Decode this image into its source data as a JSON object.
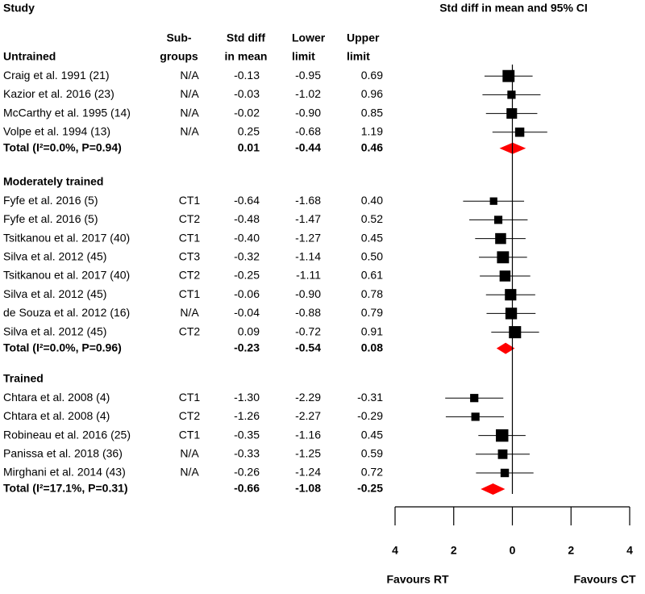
{
  "chart_data": {
    "type": "forest",
    "title": "Study",
    "plot_title": "Std diff in mean and 95% CI",
    "column_headers": [
      [
        "Sub-",
        "groups"
      ],
      [
        "Std diff",
        "in mean"
      ],
      [
        "Lower",
        "limit"
      ],
      [
        "Upper",
        "limit"
      ]
    ],
    "groups": [
      {
        "name": "Untrained",
        "studies": [
          {
            "study": "Craig et al. 1991 (21)",
            "subgroup": "N/A",
            "values": [
              -0.13,
              -0.95,
              0.69
            ],
            "value_labels": [
              "-0.13",
              "-0.95",
              "0.69"
            ]
          },
          {
            "study": "Kazior et al. 2016 (23)",
            "subgroup": "N/A",
            "values": [
              -0.03,
              -1.02,
              0.96
            ],
            "value_labels": [
              "-0.03",
              "-1.02",
              "0.96"
            ]
          },
          {
            "study": "McCarthy et al. 1995 (14)",
            "subgroup": "N/A",
            "values": [
              -0.02,
              -0.9,
              0.85
            ],
            "value_labels": [
              "-0.02",
              "-0.90",
              "0.85"
            ]
          },
          {
            "study": "Volpe et al. 1994 (13)",
            "subgroup": "N/A",
            "values": [
              0.25,
              -0.68,
              1.19
            ],
            "value_labels": [
              "0.25",
              "-0.68",
              "1.19"
            ]
          }
        ],
        "total": {
          "label": "Total (I²=0.0%, P=0.94)",
          "values": [
            0.01,
            -0.44,
            0.46
          ],
          "value_labels": [
            "0.01",
            "-0.44",
            "0.46"
          ]
        }
      },
      {
        "name": "Moderately trained",
        "studies": [
          {
            "study": "Fyfe et al. 2016 (5)",
            "subgroup": "CT1",
            "values": [
              -0.64,
              -1.68,
              0.4
            ],
            "value_labels": [
              "-0.64",
              "-1.68",
              "0.40"
            ]
          },
          {
            "study": "Fyfe et al. 2016 (5)",
            "subgroup": "CT2",
            "values": [
              -0.48,
              -1.47,
              0.52
            ],
            "value_labels": [
              "-0.48",
              "-1.47",
              "0.52"
            ]
          },
          {
            "study": "Tsitkanou et al. 2017 (40)",
            "subgroup": "CT1",
            "values": [
              -0.4,
              -1.27,
              0.45
            ],
            "value_labels": [
              "-0.40",
              "-1.27",
              "0.45"
            ]
          },
          {
            "study": "Silva et al. 2012 (45)",
            "subgroup": "CT3",
            "values": [
              -0.32,
              -1.14,
              0.5
            ],
            "value_labels": [
              "-0.32",
              "-1.14",
              "0.50"
            ]
          },
          {
            "study": "Tsitkanou et al. 2017 (40)",
            "subgroup": "CT2",
            "values": [
              -0.25,
              -1.11,
              0.61
            ],
            "value_labels": [
              "-0.25",
              "-1.11",
              "0.61"
            ]
          },
          {
            "study": "Silva et al. 2012 (45)",
            "subgroup": "CT1",
            "values": [
              -0.06,
              -0.9,
              0.78
            ],
            "value_labels": [
              "-0.06",
              "-0.90",
              "0.78"
            ]
          },
          {
            "study": "de Souza et al. 2012 (16)",
            "subgroup": "N/A",
            "values": [
              -0.04,
              -0.88,
              0.79
            ],
            "value_labels": [
              "-0.04",
              "-0.88",
              "0.79"
            ]
          },
          {
            "study": "Silva et al. 2012 (45)",
            "subgroup": "CT2",
            "values": [
              0.09,
              -0.72,
              0.91
            ],
            "value_labels": [
              "0.09",
              "-0.72",
              "0.91"
            ]
          }
        ],
        "total": {
          "label": "Total (I²=0.0%, P=0.96)",
          "values": [
            -0.23,
            -0.54,
            0.08
          ],
          "value_labels": [
            "-0.23",
            "-0.54",
            "0.08"
          ]
        }
      },
      {
        "name": "Trained",
        "studies": [
          {
            "study": "Chtara et al. 2008 (4)",
            "subgroup": "CT1",
            "values": [
              -1.3,
              -2.29,
              -0.31
            ],
            "value_labels": [
              "-1.30",
              "-2.29",
              "-0.31"
            ]
          },
          {
            "study": "Chtara et al. 2008 (4)",
            "subgroup": "CT2",
            "values": [
              -1.26,
              -2.27,
              -0.29
            ],
            "value_labels": [
              "-1.26",
              "-2.27",
              "-0.29"
            ]
          },
          {
            "study": "Robineau et al. 2016 (25)",
            "subgroup": "CT1",
            "values": [
              -0.35,
              -1.16,
              0.45
            ],
            "value_labels": [
              "-0.35",
              "-1.16",
              "0.45"
            ]
          },
          {
            "study": "Panissa et al. 2018 (36)",
            "subgroup": "N/A",
            "values": [
              -0.33,
              -1.25,
              0.59
            ],
            "value_labels": [
              "-0.33",
              "-1.25",
              "0.59"
            ]
          },
          {
            "study": "Mirghani et al. 2014 (43)",
            "subgroup": "N/A",
            "values": [
              -0.26,
              -1.24,
              0.72
            ],
            "value_labels": [
              "-0.26",
              "-1.24",
              "0.72"
            ]
          }
        ],
        "total": {
          "label": "Total (I²=17.1%, P=0.31)",
          "values": [
            -0.66,
            -1.08,
            -0.25
          ],
          "value_labels": [
            "-0.66",
            "-1.08",
            "-0.25"
          ]
        }
      }
    ],
    "xlim": [
      -4,
      4
    ],
    "xticks": [
      {
        "value": -4,
        "label": "4"
      },
      {
        "value": -2,
        "label": "2"
      },
      0,
      {
        "value": 2,
        "label": "2"
      },
      {
        "value": 4,
        "label": "4"
      }
    ],
    "x_labels": [
      "Favours RT",
      "Favours CT"
    ],
    "marker_color": "#000000",
    "total_color": "#ff0000"
  }
}
